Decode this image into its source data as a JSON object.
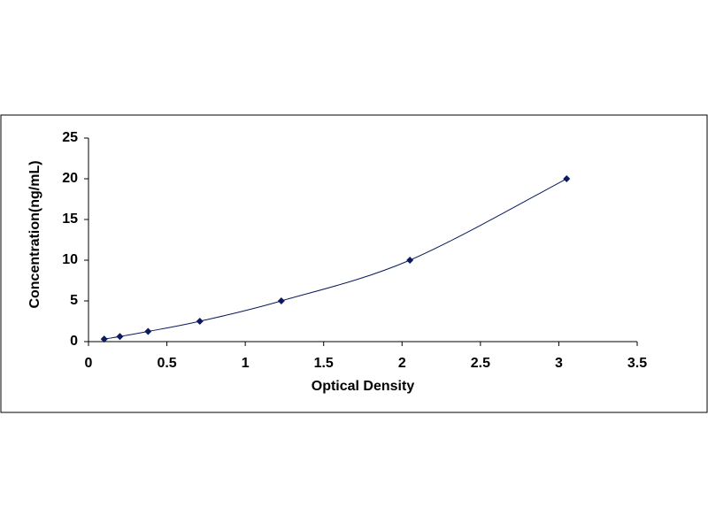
{
  "chart_data": {
    "type": "scatter",
    "lines": "smooth",
    "x_label": "Optical Density",
    "y_label": "Concentration(ng/mL)",
    "x": [
      0.1,
      0.2,
      0.38,
      0.71,
      1.23,
      2.05,
      3.05
    ],
    "series": [
      {
        "color": "#0a1a5c",
        "values": [
          0.31,
          0.625,
          1.25,
          2.5,
          5,
          10,
          20
        ]
      }
    ],
    "xlim": [
      0,
      3.5
    ],
    "xticks": [
      0,
      0.5,
      1,
      1.5,
      2,
      2.5,
      3,
      3.5
    ],
    "ylim": [
      0,
      25
    ],
    "yticks": [
      0,
      5,
      10,
      15,
      20,
      25
    ]
  }
}
